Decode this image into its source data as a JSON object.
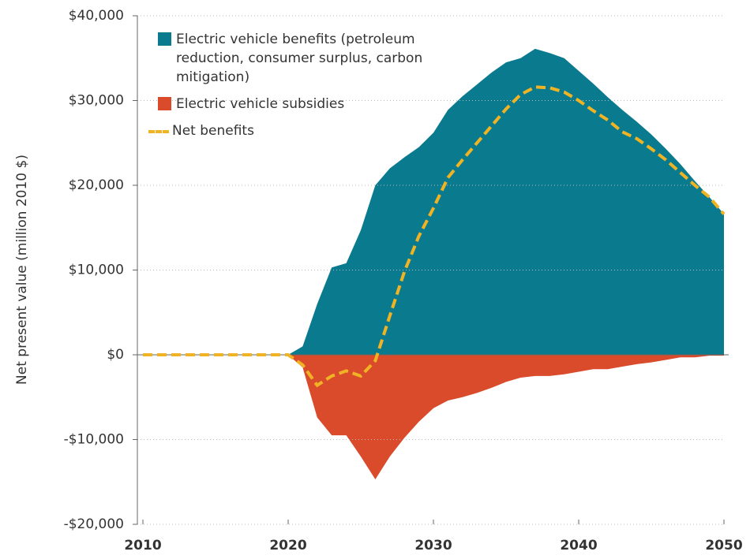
{
  "chart_data": {
    "type": "area",
    "y_label": "Net present value (million 2010 $)",
    "x": [
      2010,
      2011,
      2012,
      2013,
      2014,
      2015,
      2016,
      2017,
      2018,
      2019,
      2020,
      2021,
      2022,
      2023,
      2024,
      2025,
      2026,
      2027,
      2028,
      2029,
      2030,
      2031,
      2032,
      2033,
      2034,
      2035,
      2036,
      2037,
      2038,
      2039,
      2040,
      2041,
      2042,
      2043,
      2044,
      2045,
      2046,
      2047,
      2048,
      2049,
      2050
    ],
    "series": [
      {
        "name": "Electric vehicle benefits (petroleum reduction, consumer surplus, carbon mitigation)",
        "color": "#0a7b8f",
        "kind": "area",
        "values": [
          0,
          0,
          0,
          0,
          0,
          0,
          0,
          0,
          0,
          0,
          0,
          1000,
          6000,
          10300,
          10800,
          14700,
          20000,
          22000,
          23300,
          24500,
          26200,
          28900,
          30500,
          31900,
          33300,
          34500,
          35000,
          36100,
          35600,
          35000,
          33500,
          32000,
          30400,
          28900,
          27500,
          26000,
          24300,
          22500,
          20500,
          18600,
          16600
        ]
      },
      {
        "name": "Electric vehicle subsidies",
        "color": "#d94b2b",
        "kind": "area",
        "values": [
          0,
          0,
          0,
          0,
          0,
          0,
          0,
          0,
          0,
          0,
          0,
          -1500,
          -7400,
          -9500,
          -9500,
          -12000,
          -14700,
          -12000,
          -9800,
          -7900,
          -6300,
          -5400,
          -5000,
          -4500,
          -3900,
          -3200,
          -2700,
          -2500,
          -2500,
          -2300,
          -2000,
          -1700,
          -1700,
          -1400,
          -1100,
          -900,
          -600,
          -300,
          -300,
          -100,
          -100
        ]
      },
      {
        "name": "Net benefits",
        "color": "#f0b323",
        "kind": "line",
        "values": [
          0,
          0,
          0,
          0,
          0,
          0,
          0,
          0,
          0,
          0,
          0,
          -1200,
          -3600,
          -2500,
          -1900,
          -2500,
          -700,
          4600,
          9800,
          14000,
          17300,
          20900,
          23000,
          25000,
          27000,
          29000,
          30700,
          31600,
          31500,
          31000,
          30000,
          28800,
          27700,
          26300,
          25500,
          24300,
          23000,
          21500,
          20000,
          18600,
          16600
        ]
      }
    ],
    "xlim": [
      2010,
      2050
    ],
    "xticks": [
      2010,
      2020,
      2030,
      2040,
      2050
    ],
    "ylim": [
      -20000,
      40000
    ],
    "yticks": [
      {
        "value": -20000,
        "label": "-$20,000"
      },
      {
        "value": -10000,
        "label": "-$10,000"
      },
      {
        "value": 0,
        "label": "$0"
      },
      {
        "value": 10000,
        "label": "$10,000"
      },
      {
        "value": 20000,
        "label": "$20,000"
      },
      {
        "value": 30000,
        "label": "$30,000"
      },
      {
        "value": 40000,
        "label": "$40,000"
      }
    ],
    "grid": true,
    "legend": "top-left"
  }
}
